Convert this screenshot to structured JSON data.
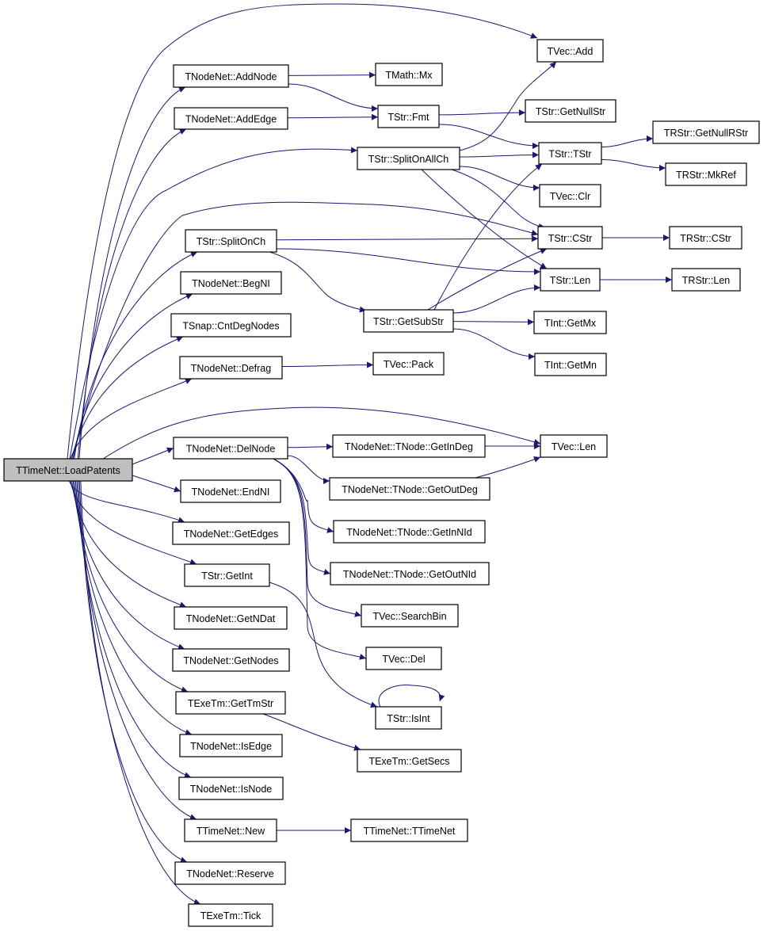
{
  "colors": {
    "edge": "#191970",
    "root_fill": "#bfbfbf",
    "node_fill": "#ffffff"
  },
  "root": "LoadPatents",
  "nodes": [
    {
      "id": "LoadPatents",
      "label": "TTimeNet::LoadPatents"
    },
    {
      "id": "AddNode",
      "label": "TNodeNet::AddNode"
    },
    {
      "id": "AddEdge",
      "label": "TNodeNet::AddEdge"
    },
    {
      "id": "SplitOnCh",
      "label": "TStr::SplitOnCh"
    },
    {
      "id": "BegNI",
      "label": "TNodeNet::BegNI"
    },
    {
      "id": "CntDegNodes",
      "label": "TSnap::CntDegNodes"
    },
    {
      "id": "Defrag",
      "label": "TNodeNet::Defrag"
    },
    {
      "id": "DelNode",
      "label": "TNodeNet::DelNode"
    },
    {
      "id": "EndNI",
      "label": "TNodeNet::EndNI"
    },
    {
      "id": "GetEdges",
      "label": "TNodeNet::GetEdges"
    },
    {
      "id": "GetInt",
      "label": "TStr::GetInt"
    },
    {
      "id": "GetNDat",
      "label": "TNodeNet::GetNDat"
    },
    {
      "id": "GetNodes",
      "label": "TNodeNet::GetNodes"
    },
    {
      "id": "GetTmStr",
      "label": "TExeTm::GetTmStr"
    },
    {
      "id": "IsEdge",
      "label": "TNodeNet::IsEdge"
    },
    {
      "id": "IsNode",
      "label": "TNodeNet::IsNode"
    },
    {
      "id": "New",
      "label": "TTimeNet::New"
    },
    {
      "id": "Reserve",
      "label": "TNodeNet::Reserve"
    },
    {
      "id": "Tick",
      "label": "TExeTm::Tick"
    },
    {
      "id": "VecAdd",
      "label": "TVec::Add"
    },
    {
      "id": "MathMx",
      "label": "TMath::Mx"
    },
    {
      "id": "Fmt",
      "label": "TStr::Fmt"
    },
    {
      "id": "GetNullStr",
      "label": "TStr::GetNullStr"
    },
    {
      "id": "SplitOnAllCh",
      "label": "TStr::SplitOnAllCh"
    },
    {
      "id": "TStrTStr",
      "label": "TStr::TStr"
    },
    {
      "id": "GetNullRStr",
      "label": "TRStr::GetNullRStr"
    },
    {
      "id": "MkRef",
      "label": "TRStr::MkRef"
    },
    {
      "id": "VecClr",
      "label": "TVec::Clr"
    },
    {
      "id": "StrCStr",
      "label": "TStr::CStr"
    },
    {
      "id": "RStrCStr",
      "label": "TRStr::CStr"
    },
    {
      "id": "StrLen",
      "label": "TStr::Len"
    },
    {
      "id": "RStrLen",
      "label": "TRStr::Len"
    },
    {
      "id": "GetSubStr",
      "label": "TStr::GetSubStr"
    },
    {
      "id": "IntGetMx",
      "label": "TInt::GetMx"
    },
    {
      "id": "IntGetMn",
      "label": "TInt::GetMn"
    },
    {
      "id": "VecPack",
      "label": "TVec::Pack"
    },
    {
      "id": "VecLen",
      "label": "TVec::Len"
    },
    {
      "id": "GetInDeg",
      "label": "TNodeNet::TNode::GetInDeg"
    },
    {
      "id": "GetOutDeg",
      "label": "TNodeNet::TNode::GetOutDeg"
    },
    {
      "id": "GetInNId",
      "label": "TNodeNet::TNode::GetInNId"
    },
    {
      "id": "GetOutNId",
      "label": "TNodeNet::TNode::GetOutNId"
    },
    {
      "id": "SearchBin",
      "label": "TVec::SearchBin"
    },
    {
      "id": "VecDel",
      "label": "TVec::Del"
    },
    {
      "id": "IsInt",
      "label": "TStr::IsInt"
    },
    {
      "id": "GetSecs",
      "label": "TExeTm::GetSecs"
    },
    {
      "id": "TTimeNetCtor",
      "label": "TTimeNet::TTimeNet"
    }
  ],
  "edges": [
    [
      "LoadPatents",
      "VecAdd"
    ],
    [
      "LoadPatents",
      "AddNode"
    ],
    [
      "LoadPatents",
      "AddEdge"
    ],
    [
      "LoadPatents",
      "SplitOnAllCh"
    ],
    [
      "LoadPatents",
      "StrCStr"
    ],
    [
      "LoadPatents",
      "SplitOnCh"
    ],
    [
      "LoadPatents",
      "BegNI"
    ],
    [
      "LoadPatents",
      "CntDegNodes"
    ],
    [
      "LoadPatents",
      "Defrag"
    ],
    [
      "LoadPatents",
      "VecLen"
    ],
    [
      "LoadPatents",
      "DelNode"
    ],
    [
      "LoadPatents",
      "EndNI"
    ],
    [
      "LoadPatents",
      "GetEdges"
    ],
    [
      "LoadPatents",
      "GetInt"
    ],
    [
      "LoadPatents",
      "GetNDat"
    ],
    [
      "LoadPatents",
      "GetNodes"
    ],
    [
      "LoadPatents",
      "GetTmStr"
    ],
    [
      "LoadPatents",
      "IsEdge"
    ],
    [
      "LoadPatents",
      "IsNode"
    ],
    [
      "LoadPatents",
      "New"
    ],
    [
      "LoadPatents",
      "Reserve"
    ],
    [
      "LoadPatents",
      "Tick"
    ],
    [
      "AddNode",
      "MathMx"
    ],
    [
      "AddNode",
      "Fmt"
    ],
    [
      "AddEdge",
      "Fmt"
    ],
    [
      "Fmt",
      "GetNullStr"
    ],
    [
      "Fmt",
      "TStrTStr"
    ],
    [
      "SplitOnAllCh",
      "VecAdd"
    ],
    [
      "SplitOnAllCh",
      "TStrTStr"
    ],
    [
      "SplitOnAllCh",
      "VecClr"
    ],
    [
      "SplitOnAllCh",
      "StrCStr"
    ],
    [
      "SplitOnAllCh",
      "StrLen"
    ],
    [
      "TStrTStr",
      "GetNullRStr"
    ],
    [
      "TStrTStr",
      "MkRef"
    ],
    [
      "SplitOnCh",
      "StrCStr"
    ],
    [
      "SplitOnCh",
      "StrLen"
    ],
    [
      "SplitOnCh",
      "GetSubStr"
    ],
    [
      "StrCStr",
      "RStrCStr"
    ],
    [
      "StrLen",
      "RStrLen"
    ],
    [
      "GetSubStr",
      "TStrTStr"
    ],
    [
      "GetSubStr",
      "StrCStr"
    ],
    [
      "GetSubStr",
      "StrLen"
    ],
    [
      "GetSubStr",
      "IntGetMx"
    ],
    [
      "GetSubStr",
      "IntGetMn"
    ],
    [
      "Defrag",
      "VecPack"
    ],
    [
      "DelNode",
      "GetInDeg"
    ],
    [
      "DelNode",
      "GetOutDeg"
    ],
    [
      "DelNode",
      "GetInNId"
    ],
    [
      "DelNode",
      "GetOutNId"
    ],
    [
      "DelNode",
      "SearchBin"
    ],
    [
      "DelNode",
      "VecDel"
    ],
    [
      "GetInDeg",
      "VecLen"
    ],
    [
      "GetOutDeg",
      "VecLen"
    ],
    [
      "GetInt",
      "IsInt"
    ],
    [
      "IsInt",
      "IsInt"
    ],
    [
      "GetTmStr",
      "GetSecs"
    ],
    [
      "New",
      "TTimeNetCtor"
    ]
  ]
}
